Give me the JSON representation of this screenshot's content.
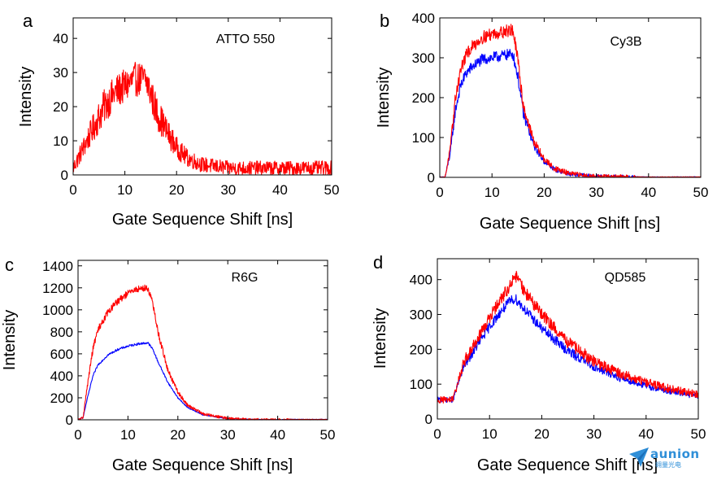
{
  "chart_data": [
    {
      "panel": "a",
      "type": "line",
      "annotation": "ATTO 550",
      "xlabel": "Gate Sequence Shift [ns]",
      "ylabel": "Intensity",
      "xlim": [
        0,
        50
      ],
      "ylim": [
        0,
        46
      ],
      "xticks": [
        0,
        10,
        20,
        30,
        40,
        50
      ],
      "yticks": [
        0,
        10,
        20,
        30,
        40
      ],
      "grid": false,
      "series": [
        {
          "color": "#ff0000",
          "x": [
            0,
            2,
            4,
            6,
            8,
            10,
            12,
            14,
            15,
            16,
            18,
            20,
            22,
            25,
            30,
            35,
            40,
            45,
            50
          ],
          "y": [
            2,
            8,
            14,
            20,
            24,
            26,
            28,
            28,
            24,
            19,
            13,
            8,
            5,
            3,
            2,
            2,
            2,
            2,
            2
          ],
          "noise": 5
        }
      ]
    },
    {
      "panel": "b",
      "type": "line",
      "annotation": "Cy3B",
      "xlabel": "Gate Sequence Shift [ns]",
      "ylabel": "Intensity",
      "xlim": [
        0,
        50
      ],
      "ylim": [
        0,
        400
      ],
      "xticks": [
        0,
        10,
        20,
        30,
        40,
        50
      ],
      "yticks": [
        0,
        100,
        200,
        300,
        400
      ],
      "grid": false,
      "series": [
        {
          "color": "#0000ff",
          "x": [
            0,
            1,
            2,
            3,
            4,
            5,
            6,
            8,
            10,
            12,
            14,
            15,
            16,
            18,
            20,
            22,
            25,
            30,
            35,
            40,
            45,
            50
          ],
          "y": [
            0,
            0,
            60,
            170,
            230,
            260,
            275,
            295,
            300,
            305,
            310,
            250,
            160,
            80,
            40,
            20,
            8,
            2,
            1,
            0,
            0,
            0
          ],
          "noise": 14
        },
        {
          "color": "#ff0000",
          "x": [
            0,
            1,
            2,
            3,
            4,
            5,
            6,
            8,
            10,
            12,
            14,
            15,
            16,
            18,
            20,
            22,
            25,
            30,
            35,
            40,
            45,
            50
          ],
          "y": [
            0,
            0,
            70,
            200,
            270,
            305,
            325,
            350,
            360,
            365,
            370,
            290,
            180,
            90,
            45,
            22,
            9,
            2,
            1,
            0,
            0,
            0
          ],
          "noise": 16
        }
      ]
    },
    {
      "panel": "c",
      "type": "line",
      "annotation": "R6G",
      "xlabel": "Gate Sequence Shift [ns]",
      "ylabel": "Intensity",
      "xlim": [
        0,
        50
      ],
      "ylim": [
        0,
        1450
      ],
      "xticks": [
        0,
        10,
        20,
        30,
        40,
        50
      ],
      "yticks": [
        0,
        200,
        400,
        600,
        800,
        1000,
        1200,
        1400
      ],
      "grid": false,
      "series": [
        {
          "color": "#0000ff",
          "x": [
            0,
            1,
            2,
            3,
            4,
            6,
            8,
            10,
            12,
            14,
            15,
            16,
            18,
            20,
            22,
            25,
            30,
            35,
            40,
            45,
            50
          ],
          "y": [
            0,
            20,
            220,
            400,
            500,
            590,
            640,
            670,
            690,
            700,
            640,
            530,
            340,
            200,
            110,
            45,
            10,
            3,
            1,
            0,
            0
          ],
          "noise": 10
        },
        {
          "color": "#ff0000",
          "x": [
            0,
            1,
            2,
            3,
            4,
            6,
            8,
            10,
            12,
            14,
            15,
            16,
            18,
            20,
            22,
            25,
            30,
            35,
            40,
            45,
            50
          ],
          "y": [
            0,
            20,
            350,
            650,
            820,
            980,
            1080,
            1150,
            1190,
            1200,
            1050,
            800,
            450,
            250,
            130,
            55,
            12,
            3,
            1,
            0,
            0
          ],
          "noise": 30
        }
      ]
    },
    {
      "panel": "d",
      "type": "line",
      "annotation": "QD585",
      "xlabel": "Gate Sequence Shift [ns]",
      "ylabel": "Intensity",
      "xlim": [
        0,
        50
      ],
      "ylim": [
        0,
        460
      ],
      "xticks": [
        0,
        10,
        20,
        30,
        40,
        50
      ],
      "yticks": [
        0,
        100,
        200,
        300,
        400
      ],
      "grid": false,
      "series": [
        {
          "color": "#0000ff",
          "x": [
            0,
            3,
            5,
            8,
            10,
            12,
            14,
            15,
            17,
            20,
            25,
            30,
            35,
            40,
            45,
            50
          ],
          "y": [
            55,
            55,
            150,
            220,
            265,
            305,
            340,
            345,
            310,
            260,
            195,
            150,
            118,
            95,
            78,
            65
          ],
          "noise": 14
        },
        {
          "color": "#ff0000",
          "x": [
            0,
            3,
            5,
            8,
            10,
            12,
            14,
            15,
            17,
            20,
            25,
            30,
            35,
            40,
            45,
            50
          ],
          "y": [
            55,
            55,
            160,
            240,
            290,
            340,
            385,
            410,
            360,
            300,
            220,
            165,
            130,
            105,
            85,
            70
          ],
          "noise": 18
        }
      ]
    }
  ],
  "watermark": {
    "logo": "paper-plane-logo",
    "text": "aunion",
    "subtext": "翱量光电"
  }
}
